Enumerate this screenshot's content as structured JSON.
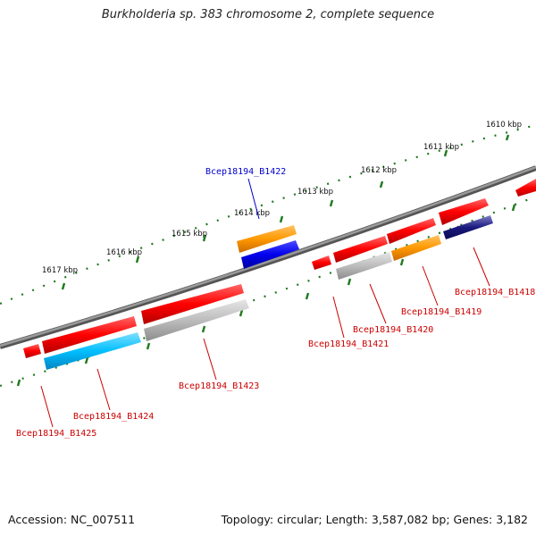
{
  "title": "Burkholderia sp. 383 chromosome 2, complete sequence",
  "footer": {
    "accession": "Accession: NC_007511",
    "summary": "Topology: circular; Length: 3,587,082 bp; Genes: 3,182"
  },
  "scale_ticks": [
    {
      "label": "1610 kbp"
    },
    {
      "label": "1611 kbp"
    },
    {
      "label": "1612 kbp"
    },
    {
      "label": "1613 kbp"
    },
    {
      "label": "1614 kbp"
    },
    {
      "label": "1615 kbp"
    },
    {
      "label": "1616 kbp"
    },
    {
      "label": "1617 kbp"
    }
  ],
  "gene_labels": [
    {
      "id": "Bcep18194_B1418",
      "color": "#cc0000"
    },
    {
      "id": "Bcep18194_B1419",
      "color": "#cc0000"
    },
    {
      "id": "Bcep18194_B1420",
      "color": "#cc0000"
    },
    {
      "id": "Bcep18194_B1421",
      "color": "#cc0000"
    },
    {
      "id": "Bcep18194_B1422",
      "color": "#0000cc"
    },
    {
      "id": "Bcep18194_B1423",
      "color": "#cc0000"
    },
    {
      "id": "Bcep18194_B1424",
      "color": "#cc0000"
    },
    {
      "id": "Bcep18194_B1425",
      "color": "#cc0000"
    }
  ],
  "colors": {
    "backbone": "#7a7a7a",
    "scale_dots": "#1f7a1f",
    "gene_red": "#ff0000",
    "gene_orange": "#ff9900",
    "gene_blue": "#0000ee",
    "gene_cyan": "#00bfff",
    "gene_gray": "#b8b8b8",
    "gene_navy": "#1a1a80"
  }
}
